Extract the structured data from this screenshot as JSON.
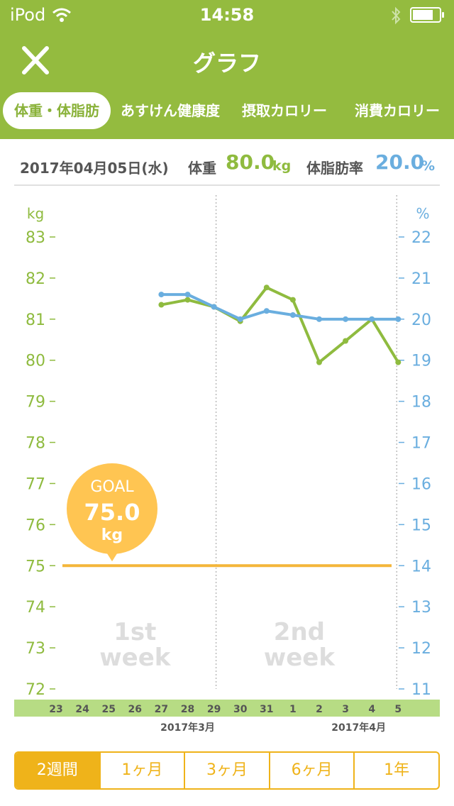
{
  "status": {
    "carrier": "iPod",
    "time": "14:58"
  },
  "nav": {
    "title": "グラフ"
  },
  "tabs": [
    {
      "label": "体重・体脂肪",
      "active": true
    },
    {
      "label": "あすけん健康度",
      "active": false
    },
    {
      "label": "摂取カロリー",
      "active": false
    },
    {
      "label": "消費カロリー",
      "active": false
    }
  ],
  "info": {
    "date": "2017年04月05日(水)",
    "weight_label": "体重",
    "weight_value": "80.0",
    "weight_unit": "kg",
    "fat_label": "体脂肪率",
    "fat_value": "20.0",
    "fat_unit": "%"
  },
  "goal": {
    "label": "GOAL",
    "value": "75.0",
    "unit": "kg"
  },
  "chart_data": {
    "type": "line",
    "y_left": {
      "unit": "kg",
      "range": [
        72,
        83
      ],
      "ticks": [
        83,
        82,
        81,
        80,
        79,
        78,
        77,
        76,
        75,
        74,
        73,
        72
      ]
    },
    "y_right": {
      "unit": "%",
      "range": [
        11,
        22
      ],
      "ticks": [
        22,
        21,
        20,
        19,
        18,
        17,
        16,
        15,
        14,
        13,
        12,
        11
      ]
    },
    "x_labels": [
      "23",
      "24",
      "25",
      "26",
      "27",
      "28",
      "29",
      "30",
      "31",
      "1",
      "2",
      "3",
      "4",
      "5"
    ],
    "month_labels": [
      {
        "label": "2017年3月",
        "at_index": 5
      },
      {
        "label": "2017年4月",
        "at_index": 11.5
      }
    ],
    "week_labels": [
      {
        "line1": "1st",
        "line2": "week"
      },
      {
        "line1": "2nd",
        "line2": "week"
      }
    ],
    "series": [
      {
        "axis": "left",
        "color": "#8fbb3f",
        "values": [
          null,
          null,
          null,
          null,
          81.35,
          81.47,
          81.3,
          80.95,
          81.77,
          81.47,
          79.95,
          80.47,
          81.0,
          79.95
        ]
      },
      {
        "axis": "right",
        "color": "#6aaedf",
        "values": [
          null,
          null,
          null,
          null,
          20.6,
          20.6,
          20.3,
          20.0,
          20.2,
          20.1,
          20.0,
          20.0,
          20.0,
          20.0
        ]
      }
    ],
    "goal_value": 75.0,
    "colors": {
      "left_axis": "#8fbb3f",
      "right_axis": "#6aaedf",
      "goal": "#f4b63a",
      "goal_bubble": "#ffc552",
      "date_strip": "#b7dc84",
      "week_text": "#dddddd"
    }
  },
  "periods": [
    {
      "label": "2週間",
      "active": true
    },
    {
      "label": "1ヶ月",
      "active": false
    },
    {
      "label": "3ヶ月",
      "active": false
    },
    {
      "label": "6ヶ月",
      "active": false
    },
    {
      "label": "1年",
      "active": false
    }
  ]
}
